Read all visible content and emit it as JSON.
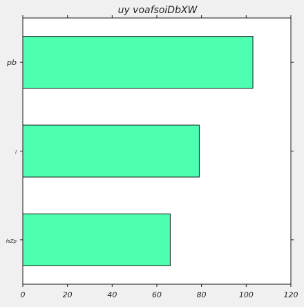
{
  "colors": {
    "background": "#f0f0f0",
    "plot_area": "#ffffff",
    "bar_fill": "#4dffb0",
    "bar_edge": "#1a1a1a",
    "axis": "#1a1a1a"
  },
  "chart_data": {
    "type": "bar",
    "orientation": "horizontal",
    "title": "uy voafsoiDbXW",
    "xlabel": "",
    "ylabel": "",
    "categories": [
      "pb",
      "l",
      "fsZp"
    ],
    "values": [
      103,
      79,
      66
    ],
    "xlim": [
      0,
      120
    ],
    "xticks": [
      0,
      20,
      40,
      60,
      80,
      100,
      120
    ],
    "xtick_labels": [
      "0",
      "20",
      "40",
      "60",
      "80",
      "100",
      "120"
    ],
    "grid": false,
    "legend": "none"
  }
}
